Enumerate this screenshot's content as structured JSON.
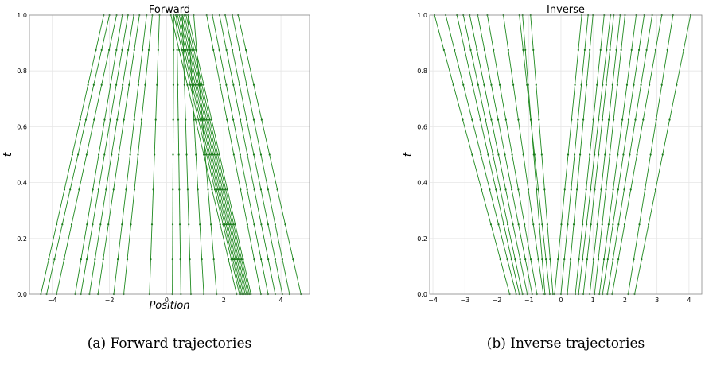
{
  "chart_data": [
    {
      "type": "line",
      "title": "Forward",
      "xlabel": "Position",
      "ylabel": "t",
      "caption": "(a) Forward trajectories",
      "xlim": [
        -4.8,
        5.0
      ],
      "ylim": [
        0.0,
        1.0
      ],
      "xticks": [
        -4,
        -2,
        0,
        2,
        4
      ],
      "yticks": [
        0.0,
        0.2,
        0.4,
        0.6,
        0.8,
        1.0
      ],
      "grid": true,
      "t_samples": [
        0.0,
        0.125,
        0.25,
        0.375,
        0.5,
        0.625,
        0.75,
        0.875,
        1.0
      ],
      "trajectories": [
        {
          "x0": -4.4,
          "x1": -2.2
        },
        {
          "x0": -4.2,
          "x1": -2.0
        },
        {
          "x0": -3.85,
          "x1": -1.75
        },
        {
          "x0": -3.2,
          "x1": -1.55
        },
        {
          "x0": -3.0,
          "x1": -1.35
        },
        {
          "x0": -2.7,
          "x1": -1.15
        },
        {
          "x0": -2.4,
          "x1": -0.95
        },
        {
          "x0": -1.85,
          "x1": -0.7
        },
        {
          "x0": -1.5,
          "x1": -0.5
        },
        {
          "x0": -0.6,
          "x1": -0.25
        },
        {
          "x0": 0.2,
          "x1": 0.25
        },
        {
          "x0": 0.5,
          "x1": 0.35
        },
        {
          "x0": 0.85,
          "x1": 0.55
        },
        {
          "x0": 1.3,
          "x1": 0.75
        },
        {
          "x0": 1.75,
          "x1": 0.95
        },
        {
          "x0": 2.45,
          "x1": 0.15
        },
        {
          "x0": 2.55,
          "x1": 0.25
        },
        {
          "x0": 2.6,
          "x1": 0.32
        },
        {
          "x0": 2.65,
          "x1": 0.38
        },
        {
          "x0": 2.7,
          "x1": 0.44
        },
        {
          "x0": 2.75,
          "x1": 0.5
        },
        {
          "x0": 2.8,
          "x1": 0.56
        },
        {
          "x0": 2.85,
          "x1": 0.62
        },
        {
          "x0": 2.9,
          "x1": 0.68
        },
        {
          "x0": 2.95,
          "x1": 0.75
        },
        {
          "x0": 3.3,
          "x1": 1.4
        },
        {
          "x0": 3.55,
          "x1": 1.6
        },
        {
          "x0": 3.8,
          "x1": 1.85
        },
        {
          "x0": 4.05,
          "x1": 2.05
        },
        {
          "x0": 4.3,
          "x1": 2.3
        },
        {
          "x0": 4.7,
          "x1": 2.5
        }
      ]
    },
    {
      "type": "line",
      "title": "Inverse",
      "xlabel": "",
      "ylabel": "t",
      "caption": "(b) Inverse trajectories",
      "xlim": [
        -4.1,
        4.4
      ],
      "ylim": [
        0.0,
        1.0
      ],
      "xticks": [
        -4,
        -3,
        -2,
        -1,
        0,
        1,
        2,
        3,
        4
      ],
      "yticks": [
        0.0,
        0.2,
        0.4,
        0.6,
        0.8,
        1.0
      ],
      "grid": true,
      "t_samples": [
        0.0,
        0.125,
        0.25,
        0.375,
        0.5,
        0.625,
        0.75,
        0.875,
        1.0
      ],
      "trajectories": [
        {
          "x0": -1.6,
          "x1": -3.95
        },
        {
          "x0": -1.4,
          "x1": -3.6
        },
        {
          "x0": -1.3,
          "x1": -3.25
        },
        {
          "x0": -1.2,
          "x1": -3.05
        },
        {
          "x0": -1.05,
          "x1": -2.85
        },
        {
          "x0": -0.9,
          "x1": -2.6
        },
        {
          "x0": -0.75,
          "x1": -2.3
        },
        {
          "x0": -0.55,
          "x1": -1.8
        },
        {
          "x0": -0.5,
          "x1": -1.2
        },
        {
          "x0": -0.35,
          "x1": -1.3
        },
        {
          "x0": -0.25,
          "x1": -0.95
        },
        {
          "x0": -0.2,
          "x1": 0.65
        },
        {
          "x0": 0.0,
          "x1": 0.85
        },
        {
          "x0": 0.2,
          "x1": 1.0
        },
        {
          "x0": 0.45,
          "x1": 1.35
        },
        {
          "x0": 0.55,
          "x1": 1.55
        },
        {
          "x0": 0.7,
          "x1": 1.65
        },
        {
          "x0": 0.9,
          "x1": 1.85
        },
        {
          "x0": 1.05,
          "x1": 2.0
        },
        {
          "x0": 1.2,
          "x1": 2.35
        },
        {
          "x0": 1.3,
          "x1": 2.6
        },
        {
          "x0": 1.45,
          "x1": 2.85
        },
        {
          "x0": 1.6,
          "x1": 3.15
        },
        {
          "x0": 2.1,
          "x1": 3.5
        },
        {
          "x0": 2.3,
          "x1": 4.05
        }
      ]
    }
  ]
}
